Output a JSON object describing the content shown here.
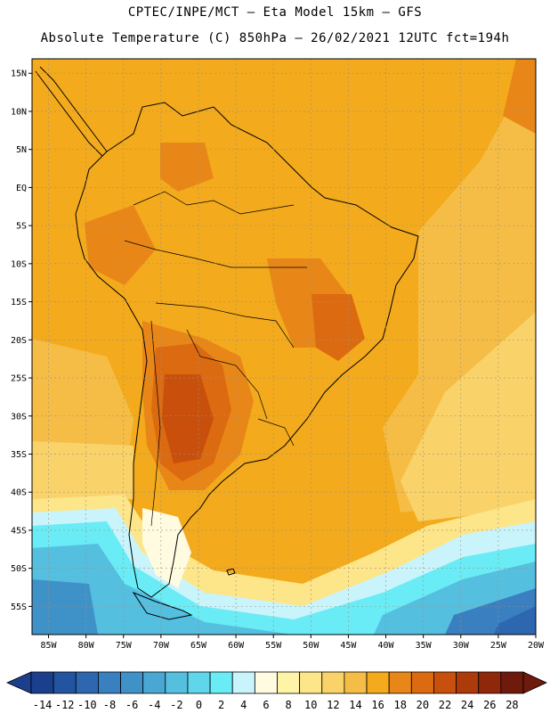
{
  "header": {
    "title_line1": "CPTEC/INPE/MCT –  Eta Model 15km – GFS",
    "title_line2": "Absolute Temperature (C) 850hPa – 26/02/2021 12UTC fct=194h"
  },
  "lat_labels": [
    "15N",
    "10N",
    "5N",
    "EQ",
    "5S",
    "10S",
    "15S",
    "20S",
    "25S",
    "30S",
    "35S",
    "40S",
    "45S",
    "50S",
    "55S"
  ],
  "lat_values": [
    15,
    10,
    5,
    0,
    -5,
    -10,
    -15,
    -20,
    -25,
    -30,
    -35,
    -40,
    -45,
    -50,
    -55
  ],
  "lon_labels": [
    "85W",
    "80W",
    "75W",
    "70W",
    "65W",
    "60W",
    "55W",
    "50W",
    "45W",
    "40W",
    "35W",
    "30W",
    "25W",
    "20W"
  ],
  "lon_values": [
    -85,
    -80,
    -75,
    -70,
    -65,
    -60,
    -55,
    -50,
    -45,
    -40,
    -35,
    -30,
    -25,
    -20
  ],
  "colorbar": {
    "labels": [
      "-14",
      "-12",
      "-10",
      "-8",
      "-6",
      "-4",
      "-2",
      "0",
      "2",
      "4",
      "6",
      "8",
      "10",
      "12",
      "14",
      "16",
      "18",
      "20",
      "22",
      "24",
      "26",
      "28"
    ],
    "colors": [
      "#1b3f8c",
      "#2354a0",
      "#2c67b0",
      "#3a7fc0",
      "#3f92c8",
      "#4aa6d2",
      "#55bfe0",
      "#5fd6ea",
      "#69ecf6",
      "#c9f4fb",
      "#fffbe0",
      "#fff3a8",
      "#fde58a",
      "#f9d36a",
      "#f5bd45",
      "#f3aa1c",
      "#e88718",
      "#dc6a10",
      "#c8500c",
      "#ad3a0a",
      "#8f280a",
      "#6e1a0c"
    ]
  },
  "colors": {
    "map_base": "#f3aa1c",
    "coastline": "#000000",
    "grid": "#a09080"
  }
}
